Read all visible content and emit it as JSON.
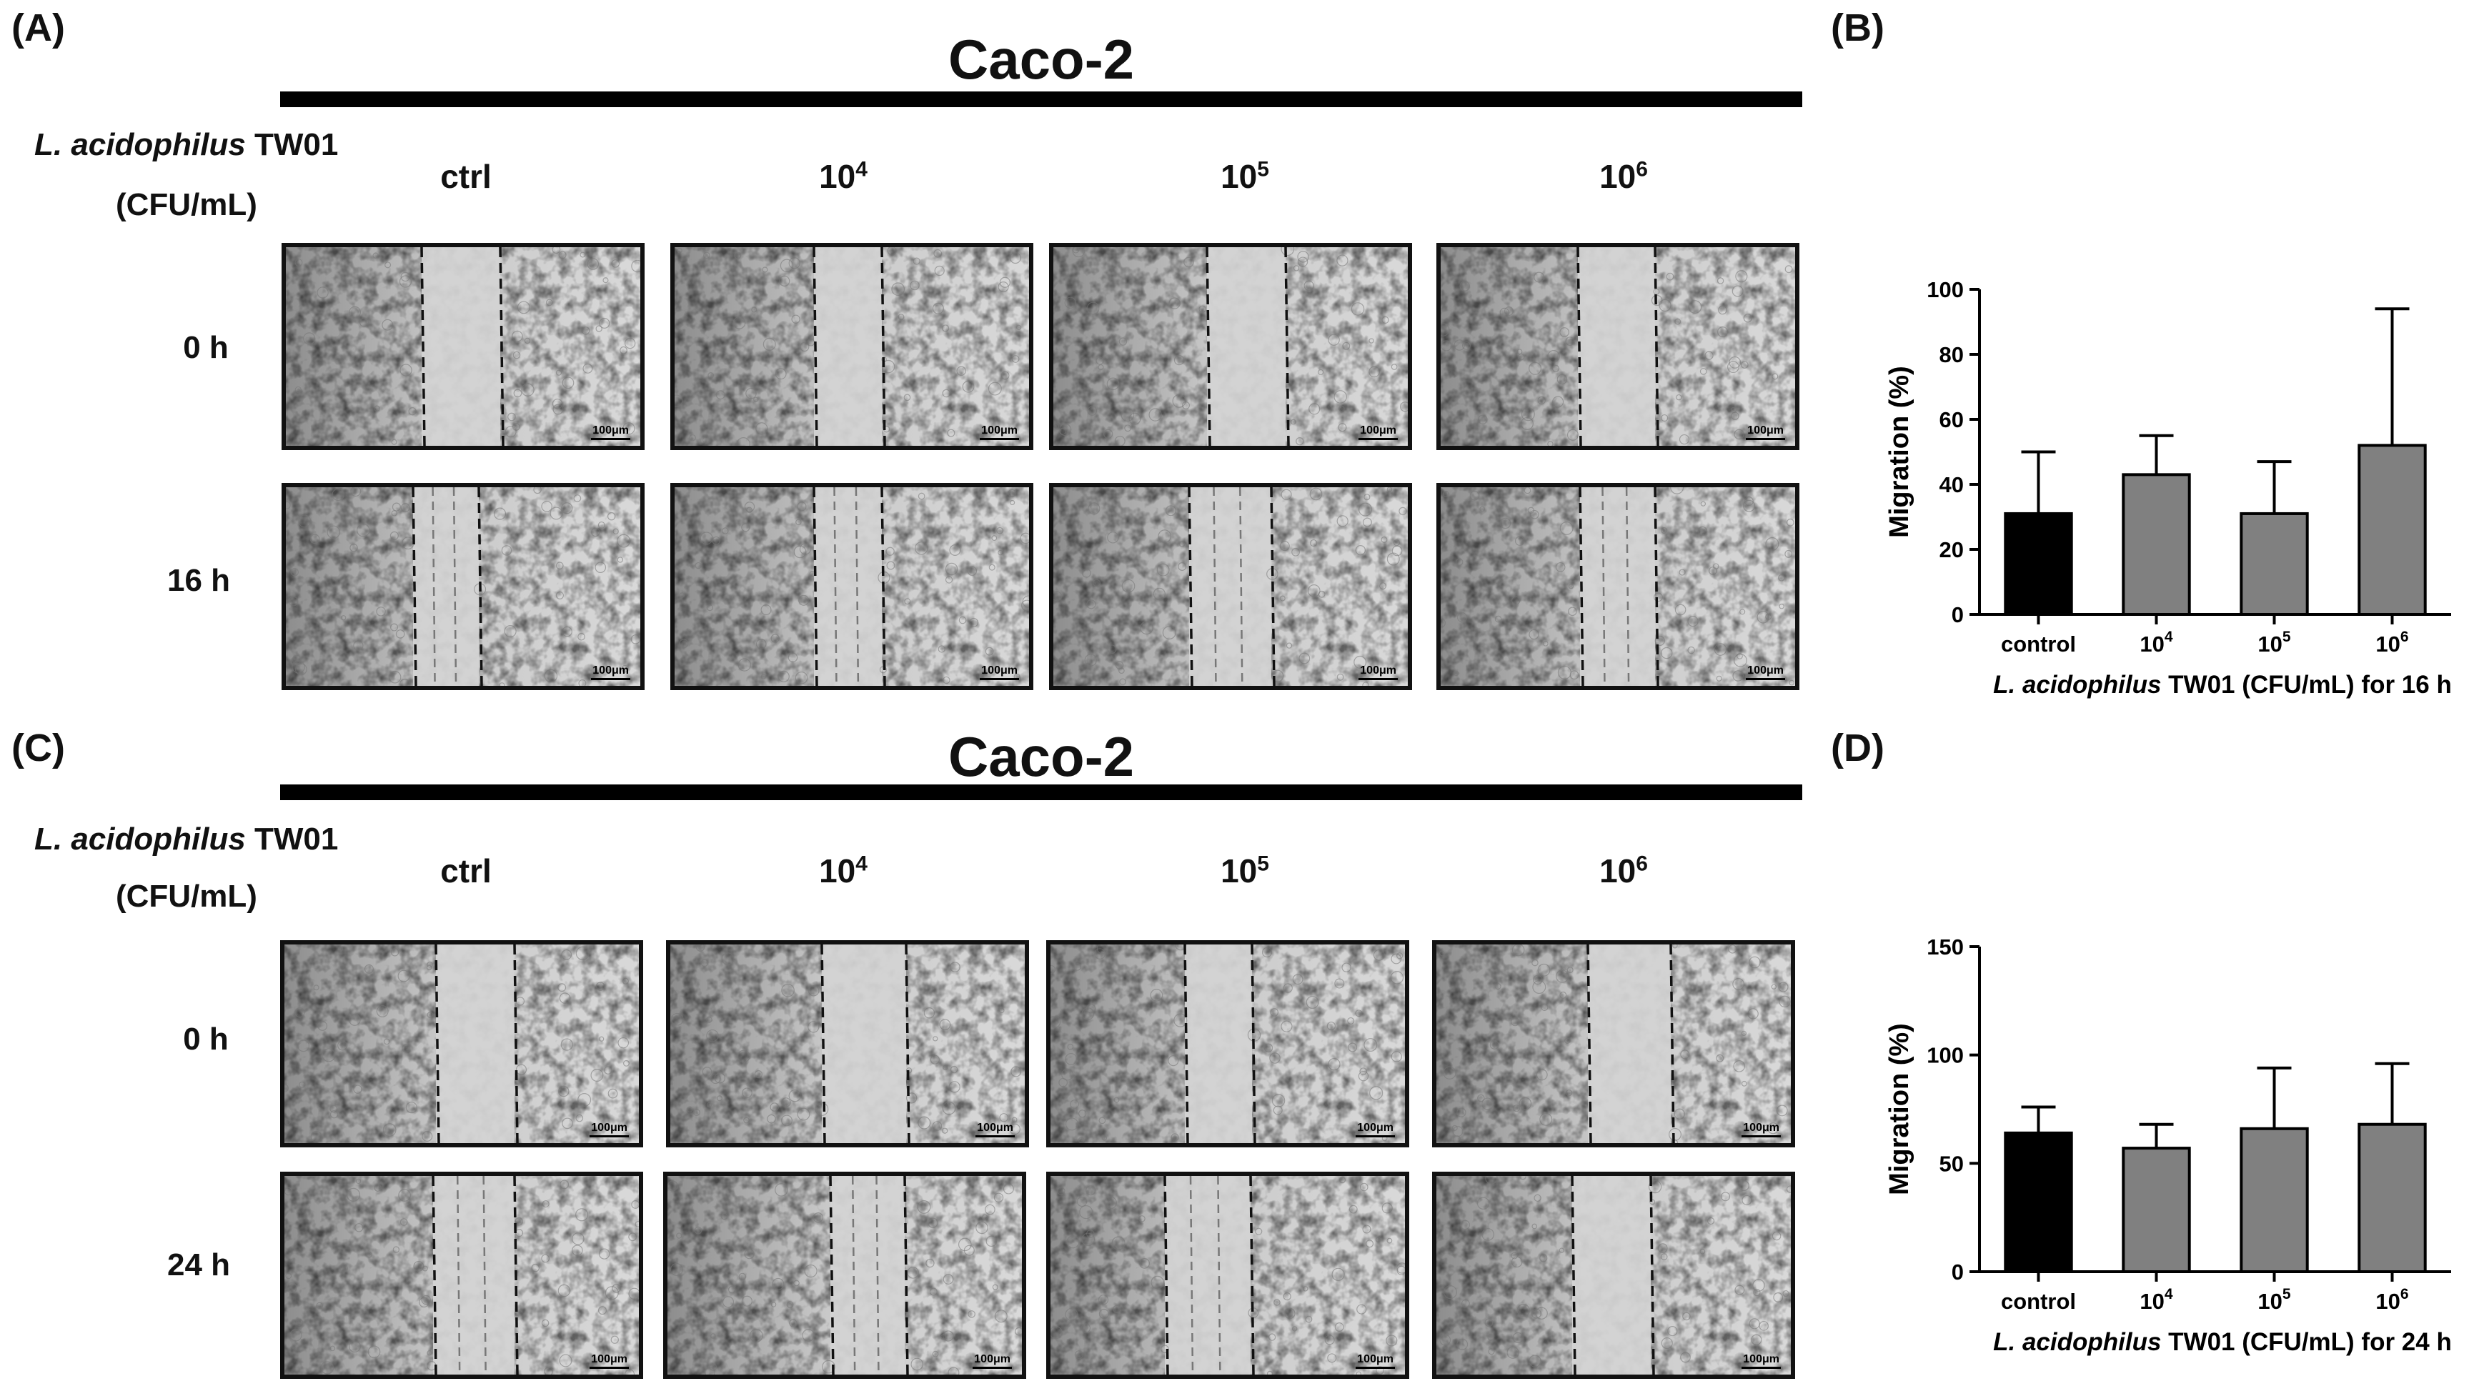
{
  "panels": {
    "a": {
      "label": "(A)",
      "title": "Caco-2",
      "row_header_species": "L. acidophilus",
      "row_header_strain": " TW01",
      "row_header_unit": "(CFU/mL)",
      "columns": [
        {
          "base": "ctrl",
          "exp": ""
        },
        {
          "base": "10",
          "exp": "4"
        },
        {
          "base": "10",
          "exp": "5"
        },
        {
          "base": "10",
          "exp": "6"
        }
      ],
      "times": [
        "0 h",
        "16 h"
      ],
      "scale_bar": "100μm"
    },
    "c": {
      "label": "(C)",
      "title": "Caco-2",
      "row_header_species": "L. acidophilus",
      "row_header_strain": " TW01",
      "row_header_unit": "(CFU/mL)",
      "columns": [
        {
          "base": "ctrl",
          "exp": ""
        },
        {
          "base": "10",
          "exp": "4"
        },
        {
          "base": "10",
          "exp": "5"
        },
        {
          "base": "10",
          "exp": "6"
        }
      ],
      "times": [
        "0 h",
        "24 h"
      ],
      "scale_bar": "100μm"
    },
    "b": {
      "label": "(B)"
    },
    "d": {
      "label": "(D)"
    }
  },
  "colors": {
    "control_bar": "#000000",
    "treatment_bar": "#808080",
    "axis": "#000000"
  },
  "chart_data": [
    {
      "id": "B",
      "type": "bar",
      "categories": [
        "control",
        "10^4",
        "10^5",
        "10^6"
      ],
      "category_base": [
        "control",
        "10",
        "10",
        "10"
      ],
      "category_exp": [
        "",
        "4",
        "5",
        "6"
      ],
      "values": [
        31,
        43,
        31,
        52
      ],
      "error_upper": [
        50,
        55,
        47,
        94
      ],
      "ylabel": "Migration (%)",
      "xlabel_species": "L. acidophilus",
      "xlabel_rest": " TW01 (CFU/mL) for 16 h",
      "ylim": [
        0,
        100
      ],
      "yticks": [
        0,
        20,
        40,
        60,
        80,
        100
      ]
    },
    {
      "id": "D",
      "type": "bar",
      "categories": [
        "control",
        "10^4",
        "10^5",
        "10^6"
      ],
      "category_base": [
        "control",
        "10",
        "10",
        "10"
      ],
      "category_exp": [
        "",
        "4",
        "5",
        "6"
      ],
      "values": [
        64,
        57,
        66,
        68
      ],
      "error_upper": [
        76,
        68,
        94,
        96
      ],
      "ylabel": "Migration (%)",
      "xlabel_species": "L. acidophilus",
      "xlabel_rest": " TW01 (CFU/mL) for 24 h",
      "ylim": [
        0,
        150
      ],
      "yticks": [
        0,
        50,
        100,
        150
      ]
    }
  ]
}
